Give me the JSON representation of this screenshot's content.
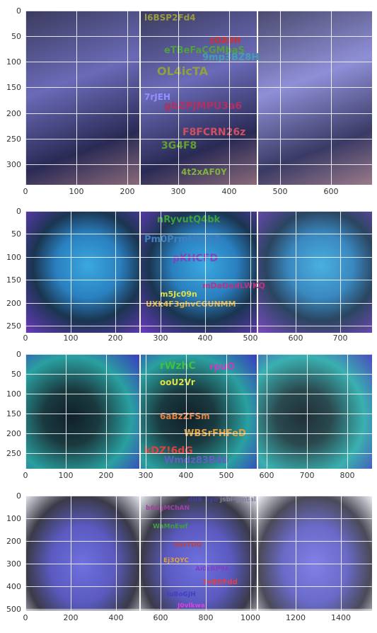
{
  "panels": [
    {
      "id": "woman",
      "y_ticks": [
        "0",
        "50",
        "100",
        "150",
        "200",
        "250",
        "300"
      ],
      "x_ticks": [
        "0",
        "100",
        "200",
        "300",
        "400",
        "500",
        "600"
      ],
      "colors": [
        "#2a2a55",
        "#5a5aa8",
        "#8f8fd8"
      ],
      "overlay_texts": [
        {
          "text": "l6BSP2Fd4",
          "color": "#9a9a40"
        },
        {
          "text": "zOA8H",
          "color": "#d03030"
        },
        {
          "text": "eTBeFaCGMbaS",
          "color": "#50a040"
        },
        {
          "text": "9mp3BZ8H",
          "color": "#40a0b0"
        },
        {
          "text": "OL4icTA",
          "color": "#90a040"
        },
        {
          "text": "7rJEH",
          "color": "#9090ff"
        },
        {
          "text": "gbZPJMPU3a6",
          "color": "#b03060"
        },
        {
          "text": "F8FCRN26z",
          "color": "#d05060"
        },
        {
          "text": "3G4F8",
          "color": "#60a030"
        },
        {
          "text": "4t2xAF0Y",
          "color": "#80b040"
        }
      ]
    },
    {
      "id": "butterfly",
      "y_ticks": [
        "0",
        "50",
        "100",
        "150",
        "200",
        "250"
      ],
      "x_ticks": [
        "0",
        "100",
        "200",
        "300",
        "400",
        "500",
        "600",
        "700"
      ],
      "colors": [
        "#1a3550",
        "#3aa8e0",
        "#6a3ac0"
      ],
      "overlay_texts": [
        {
          "text": "nRyvutQ4bk",
          "color": "#40a040"
        },
        {
          "text": "Pm0PrmHhtSZ",
          "color": "#4080c0"
        },
        {
          "text": "pKHCFD",
          "color": "#8040c0"
        },
        {
          "text": "mDaOedLWKQ",
          "color": "#c03080"
        },
        {
          "text": "m5Jc09n",
          "color": "#e0e040"
        },
        {
          "text": "UXk4F3ghvCGUNMM",
          "color": "#e0b040"
        }
      ]
    },
    {
      "id": "toucan",
      "y_ticks": [
        "0",
        "50",
        "100",
        "150",
        "200",
        "250"
      ],
      "x_ticks": [
        "0",
        "100",
        "200",
        "300",
        "400",
        "500",
        "600",
        "700",
        "800"
      ],
      "colors": [
        "#10302a",
        "#2aa0a0",
        "#3a3ac0"
      ],
      "overlay_texts": [
        {
          "text": "rWzhC",
          "color": "#40c040"
        },
        {
          "text": "rpuO",
          "color": "#c040c0"
        },
        {
          "text": "ooU2Vr",
          "color": "#e0e040"
        },
        {
          "text": "6aBzZFSm",
          "color": "#e08040"
        },
        {
          "text": "WBSrFHFeD",
          "color": "#e0a040"
        },
        {
          "text": "kDZ!6dG",
          "color": "#e04040"
        },
        {
          "text": "Wmdz83B4b",
          "color": "#6060c0"
        }
      ]
    },
    {
      "id": "baby",
      "y_ticks": [
        "0",
        "100",
        "200",
        "300",
        "400",
        "500"
      ],
      "x_ticks": [
        "0",
        "200",
        "400",
        "600",
        "800",
        "1000",
        "1200",
        "1400"
      ],
      "colors": [
        "#3a3a48",
        "#7070e0",
        "#e8e8f0"
      ],
      "overlay_texts": [
        {
          "text": "dBB Bya",
          "color": "#4040a0"
        },
        {
          "text": "jsbl-gmtal",
          "color": "#8080a0"
        },
        {
          "text": "b6ugMChAN",
          "color": "#a040a0"
        },
        {
          "text": "WaMnEwf",
          "color": "#40a040"
        },
        {
          "text": "ImsTDQ",
          "color": "#c04040"
        },
        {
          "text": "Ej3QYC",
          "color": "#e0a040"
        },
        {
          "text": "Ai0cRP9A",
          "color": "#8040c0"
        },
        {
          "text": "7oBSFdd",
          "color": "#e04040"
        },
        {
          "text": "luBoGJH",
          "color": "#4040c0"
        },
        {
          "text": "J0vlkwa",
          "color": "#e040e0"
        }
      ]
    }
  ]
}
